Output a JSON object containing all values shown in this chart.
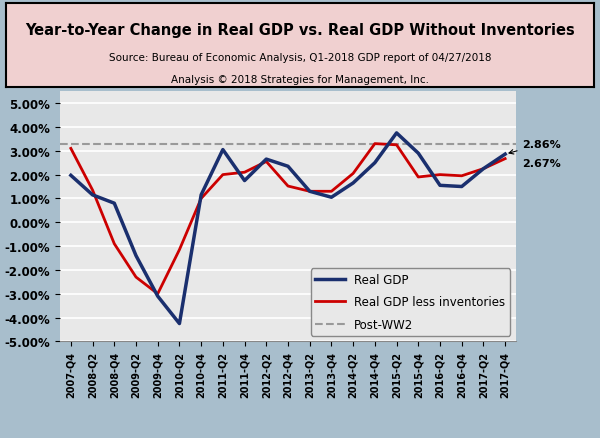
{
  "title": "Year-to-Year Change in Real GDP vs. Real GDP Without Inventories",
  "subtitle1": "Source: Bureau of Economic Analysis, Q1-2018 GDP report of 04/27/2018",
  "subtitle2": "Analysis © 2018 Strategies for Management, Inc.",
  "background_color": "#a8becc",
  "plot_bg_color": "#e8e8e8",
  "title_box_color": "#f0d0d0",
  "post_ww2_value": 0.033,
  "xlabels": [
    "2007-Q4",
    "2008-Q2",
    "2008-Q4",
    "2009-Q2",
    "2009-Q4",
    "2010-Q2",
    "2010-Q4",
    "2011-Q2",
    "2011-Q4",
    "2012-Q2",
    "2012-Q4",
    "2013-Q2",
    "2013-Q4",
    "2014-Q2",
    "2014-Q4",
    "2015-Q2",
    "2015-Q4",
    "2016-Q2",
    "2016-Q4",
    "2017-Q2",
    "2017-Q4"
  ],
  "real_gdp": [
    0.0197,
    0.0115,
    0.008,
    -0.014,
    -0.031,
    -0.0425,
    0.0115,
    0.0305,
    0.0175,
    0.0265,
    0.0235,
    0.013,
    0.0105,
    0.0165,
    0.025,
    0.0375,
    0.029,
    0.0155,
    0.015,
    0.0225,
    0.0286
  ],
  "real_gdp_less_inv": [
    0.031,
    0.0135,
    -0.009,
    -0.023,
    -0.03,
    -0.0115,
    0.01,
    0.02,
    0.021,
    0.0255,
    0.0152,
    0.013,
    0.013,
    0.0205,
    0.033,
    0.0325,
    0.019,
    0.02,
    0.0195,
    0.0225,
    0.0267
  ],
  "real_gdp_color": "#1a2f6e",
  "real_gdp_less_inv_color": "#cc0000",
  "post_ww2_color": "#999999",
  "ylim": [
    -0.05,
    0.055
  ],
  "yticks": [
    -0.05,
    -0.04,
    -0.03,
    -0.02,
    -0.01,
    0.0,
    0.01,
    0.02,
    0.03,
    0.04,
    0.05
  ],
  "annotation_286": "2.86%",
  "annotation_267": "2.67%",
  "legend_real_gdp": "Real GDP",
  "legend_less_inv": "Real GDP less inventories",
  "legend_postww2": "Post-WW2"
}
